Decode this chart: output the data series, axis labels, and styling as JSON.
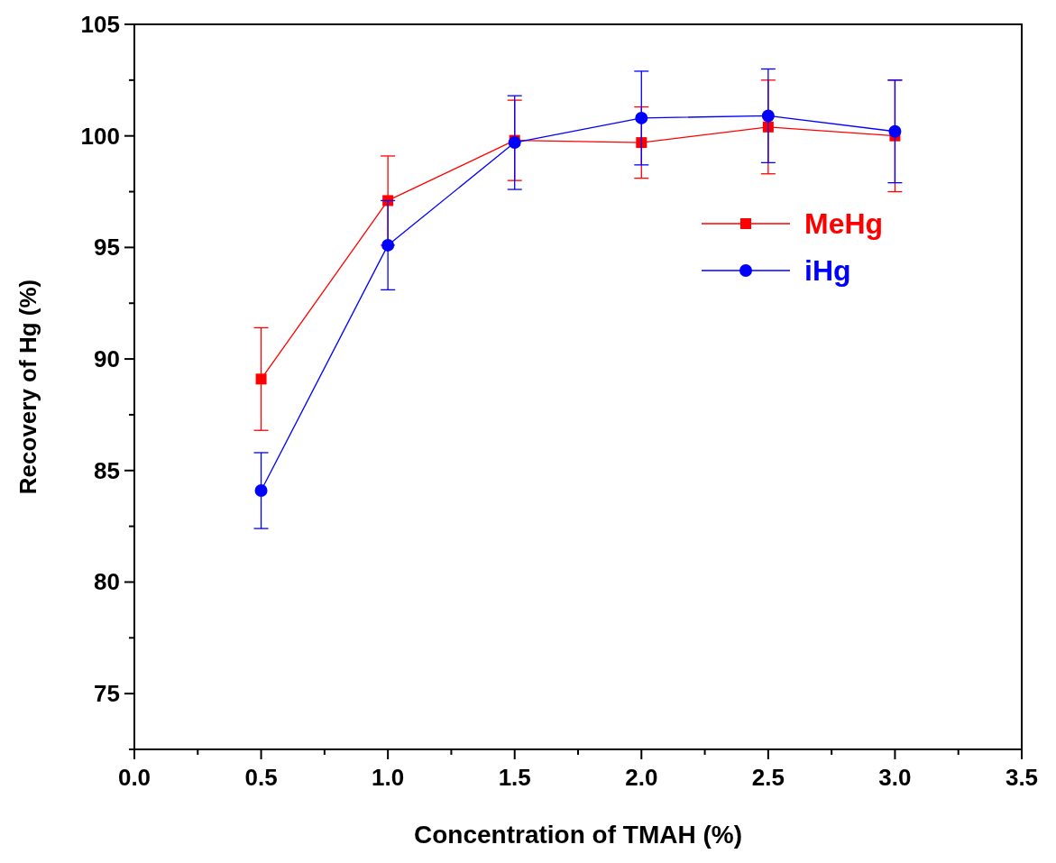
{
  "chart_data": {
    "type": "line",
    "xlabel": "Concentration of TMAH (%)",
    "ylabel": "Recovery of Hg (%)",
    "x": [
      0.5,
      1.0,
      1.5,
      2.0,
      2.5,
      3.0
    ],
    "series": [
      {
        "name": "MeHg",
        "color": "#ff0000",
        "marker": "square",
        "values": [
          89.1,
          97.1,
          99.8,
          99.7,
          100.4,
          100.0
        ],
        "errors": [
          2.3,
          2.0,
          1.8,
          1.6,
          2.1,
          2.5
        ]
      },
      {
        "name": "iHg",
        "color": "#0000ff",
        "marker": "circle",
        "values": [
          84.1,
          95.1,
          99.7,
          100.8,
          100.9,
          100.2
        ],
        "errors": [
          1.7,
          2.0,
          2.1,
          2.1,
          2.1,
          2.3
        ]
      }
    ],
    "xlim": [
      0,
      3.5
    ],
    "xticks": [
      {
        "value": 0,
        "label": "0.0"
      },
      {
        "value": 0.25,
        "label": null
      },
      {
        "value": 0.5,
        "label": "0.5"
      },
      {
        "value": 0.75,
        "label": null
      },
      {
        "value": 1,
        "label": "1.0"
      },
      {
        "value": 1.25,
        "label": null
      },
      {
        "value": 1.5,
        "label": "1.5"
      },
      {
        "value": 1.75,
        "label": null
      },
      {
        "value": 2,
        "label": "2.0"
      },
      {
        "value": 2.25,
        "label": null
      },
      {
        "value": 2.5,
        "label": "2.5"
      },
      {
        "value": 2.75,
        "label": null
      },
      {
        "value": 3,
        "label": "3.0"
      },
      {
        "value": 3.25,
        "label": null
      },
      {
        "value": 3.5,
        "label": "3.5"
      }
    ],
    "ylim": [
      72.5,
      105
    ],
    "yticks": [
      {
        "value": 72.5,
        "label": null
      },
      75,
      {
        "value": 77.5,
        "label": null
      },
      80,
      {
        "value": 82.5,
        "label": null
      },
      85,
      {
        "value": 87.5,
        "label": null
      },
      90,
      {
        "value": 92.5,
        "label": null
      },
      95,
      {
        "value": 97.5,
        "label": null
      },
      100,
      {
        "value": 102.5,
        "label": null
      },
      105
    ],
    "legend": "right",
    "grid": false
  }
}
